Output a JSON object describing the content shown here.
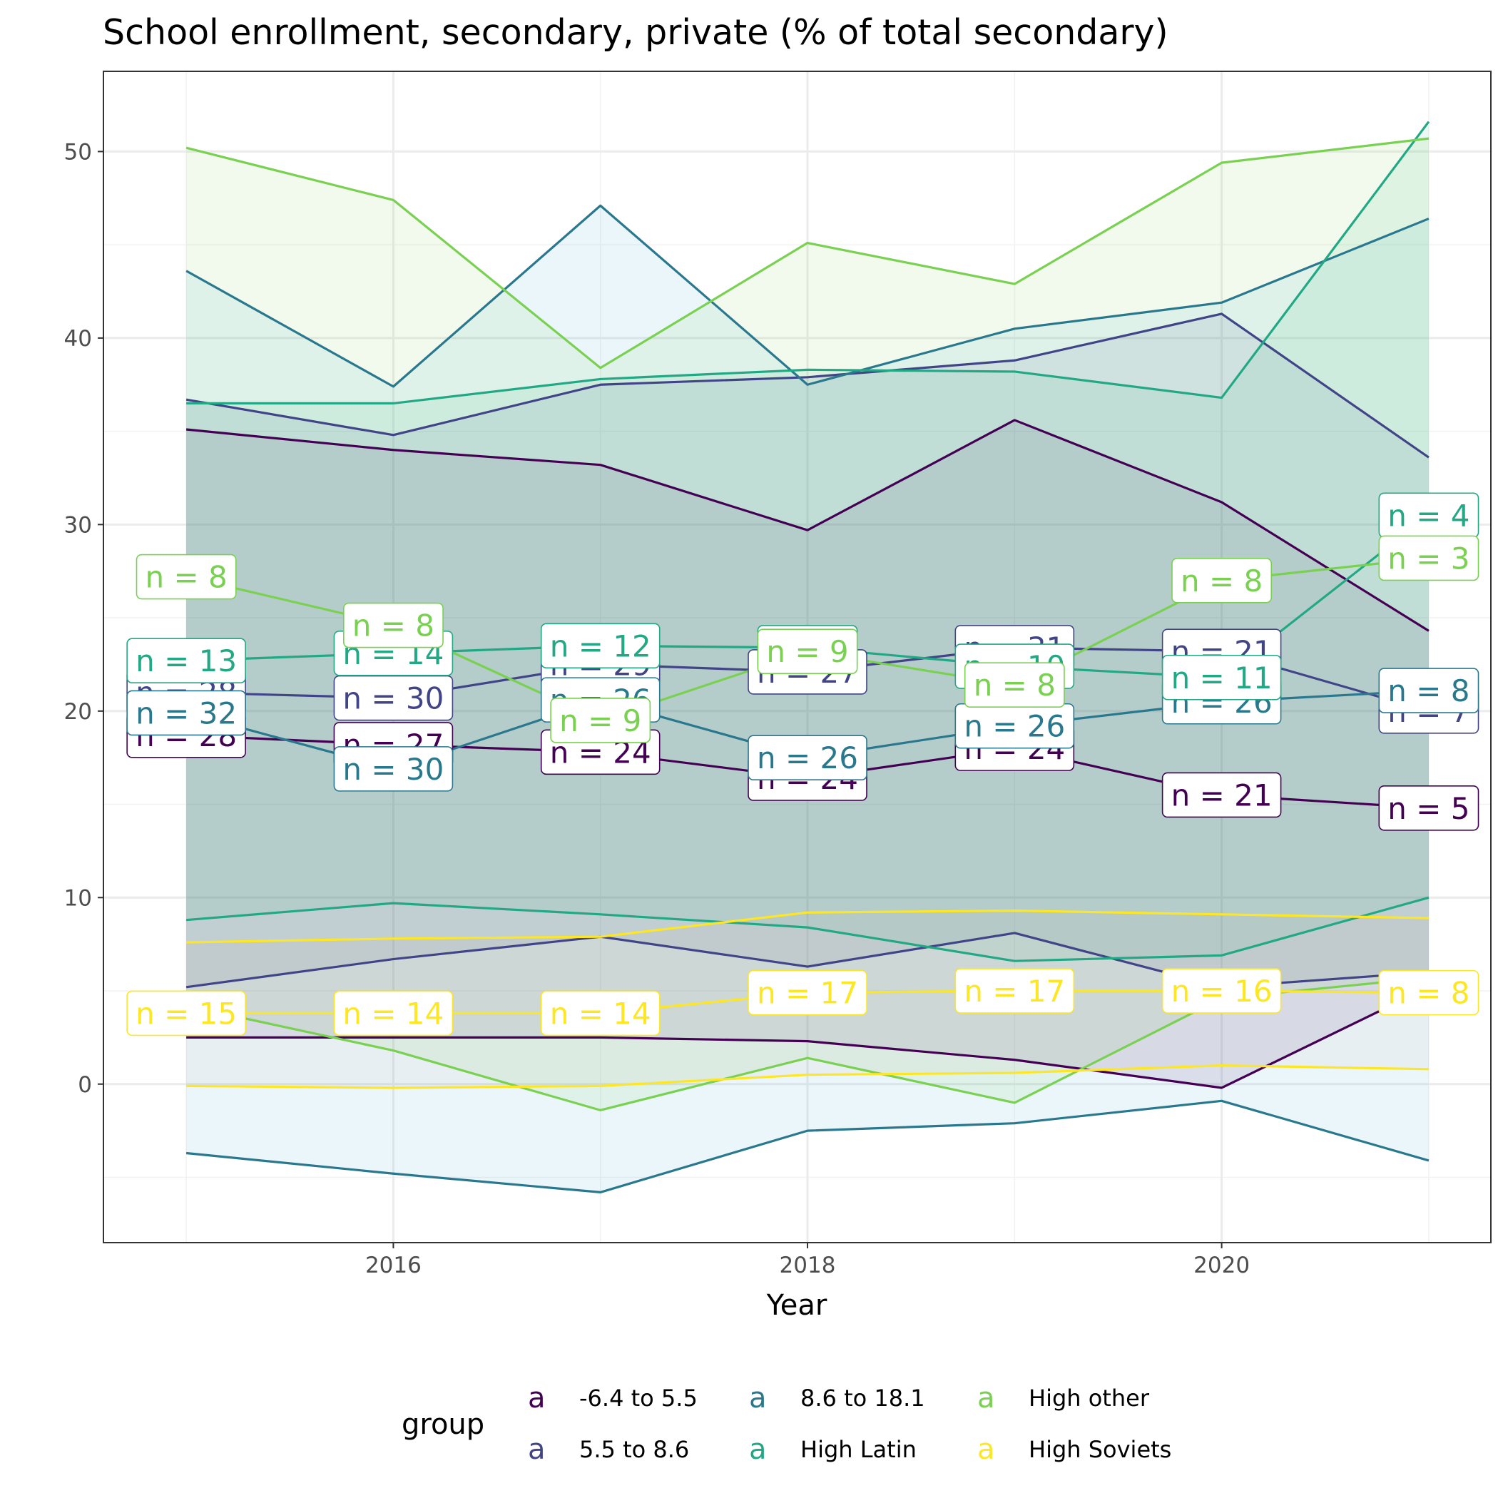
{
  "chart_data": {
    "type": "line",
    "title": "School enrollment, secondary, private (% of total secondary)",
    "xlabel": "Year",
    "ylabel": "",
    "xlim": [
      2014.6,
      2021.3
    ],
    "ylim": [
      -8.5,
      54.3
    ],
    "x_ticks": [
      2016,
      2018,
      2020
    ],
    "y_ticks": [
      0,
      10,
      20,
      30,
      40,
      50
    ],
    "grid": true,
    "legend_title": "group",
    "legend_position": "bottom",
    "x": [
      2015,
      2016,
      2017,
      2018,
      2019,
      2020,
      2021
    ],
    "series": [
      {
        "name": "-6.4 to 5.5",
        "color": "#440154",
        "mean": [
          18.7,
          18.2,
          17.8,
          16.4,
          18.0,
          15.5,
          14.8
        ],
        "upper": [
          35.1,
          34.0,
          33.2,
          29.7,
          35.6,
          31.2,
          24.3
        ],
        "lower": [
          2.5,
          2.5,
          2.5,
          2.3,
          1.3,
          -0.2,
          5.2
        ],
        "n": [
          "n = 28",
          "n = 27",
          "n = 24",
          "n = 24",
          "n = 24",
          "n = 21",
          "n = 5"
        ],
        "fill": "#440154"
      },
      {
        "name": "5.5 to 8.6",
        "color": "#414487",
        "mean": [
          21.0,
          20.7,
          22.5,
          22.1,
          23.4,
          23.2,
          20.0
        ],
        "upper": [
          36.7,
          34.8,
          37.5,
          37.9,
          38.8,
          41.3,
          33.6
        ],
        "lower": [
          5.2,
          6.7,
          7.9,
          6.3,
          8.1,
          5.2,
          6.0
        ],
        "n": [
          "n = 28",
          "n = 30",
          "n = 29",
          "n = 27",
          "n = 31",
          "n = 21",
          "n = 7"
        ],
        "fill": "#414487"
      },
      {
        "name": "8.6 to 18.1",
        "color": "#2a788e",
        "mean": [
          19.9,
          16.9,
          20.6,
          17.5,
          19.2,
          20.5,
          21.1
        ],
        "upper": [
          43.6,
          37.4,
          47.1,
          37.5,
          40.5,
          41.9,
          46.4
        ],
        "lower": [
          -3.7,
          -4.8,
          -5.8,
          -2.5,
          -2.1,
          -0.9,
          -4.1
        ],
        "n": [
          "n = 32",
          "n = 30",
          "n = 26",
          "n = 26",
          "n = 26",
          "n = 26",
          "n = 8"
        ],
        "fill": "#3da5d6"
      },
      {
        "name": "High Latin",
        "color": "#22a884",
        "mean": [
          22.7,
          23.1,
          23.5,
          23.4,
          22.4,
          21.8,
          30.5
        ],
        "upper": [
          36.5,
          36.5,
          37.8,
          38.3,
          38.2,
          36.8,
          51.6
        ],
        "lower": [
          8.8,
          9.7,
          9.1,
          8.4,
          6.6,
          6.9,
          10.0
        ],
        "n": [
          "n = 13",
          "n = 14",
          "n = 12",
          "n = 9",
          "n = 10",
          "n = 11",
          "n = 4"
        ],
        "fill": "#3dba8a"
      },
      {
        "name": "High other",
        "color": "#7ad151",
        "mean": [
          27.2,
          24.6,
          19.5,
          23.2,
          21.4,
          27.0,
          28.2
        ],
        "upper": [
          50.2,
          47.4,
          38.4,
          45.1,
          42.9,
          49.4,
          50.7
        ],
        "lower": [
          4.2,
          1.8,
          -1.4,
          1.4,
          -1.0,
          4.6,
          5.7
        ],
        "n": [
          "n = 8",
          "n = 8",
          "n = 9",
          "n = 9",
          "n = 8",
          "n = 8",
          "n = 3"
        ],
        "fill": "#7ad151"
      },
      {
        "name": "High Soviets",
        "color": "#fde725",
        "mean": [
          3.8,
          3.8,
          3.8,
          4.9,
          5.0,
          5.0,
          4.9
        ],
        "upper": [
          7.6,
          7.8,
          7.9,
          9.2,
          9.3,
          9.1,
          8.9
        ],
        "lower": [
          -0.1,
          -0.2,
          -0.1,
          0.5,
          0.6,
          1.0,
          0.8
        ],
        "n": [
          "n = 15",
          "n = 14",
          "n = 14",
          "n = 17",
          "n = 17",
          "n = 16",
          "n = 8"
        ],
        "fill": "#c9b0a8"
      }
    ]
  }
}
